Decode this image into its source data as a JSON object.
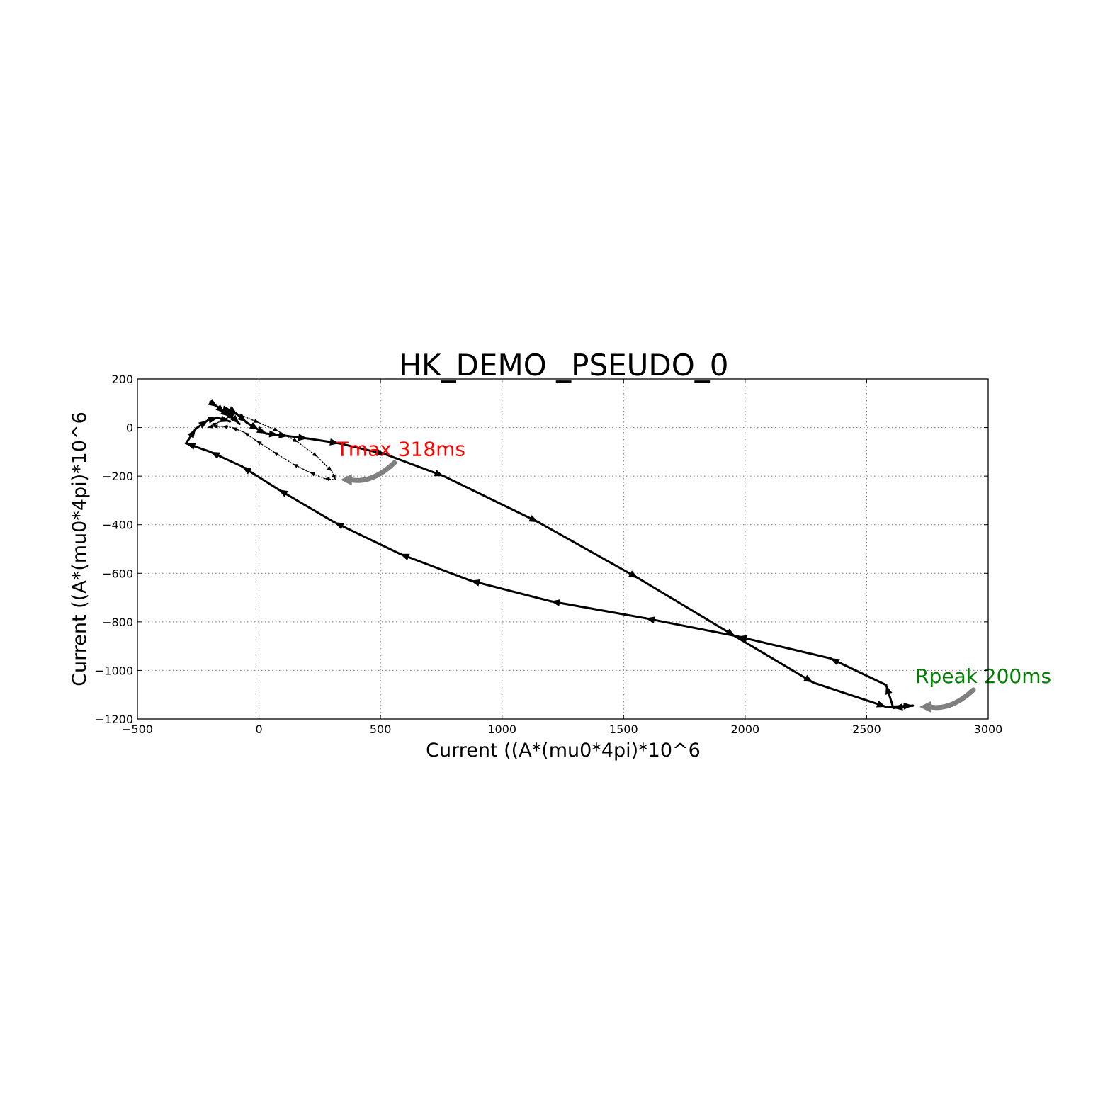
{
  "chart_data": {
    "type": "line",
    "title": "HK_DEMO _PSEUDO_0",
    "xlabel": "Current ((A*(mu0*4pi)*10^6",
    "ylabel": "Current ((A*(mu0*4pi)*10^6",
    "xlim": [
      -500,
      3000
    ],
    "ylim": [
      -1200,
      200
    ],
    "x_ticks": [
      -500,
      0,
      500,
      1000,
      1500,
      2000,
      2500,
      3000
    ],
    "x_tick_labels": [
      "−500",
      "0",
      "500",
      "1000",
      "1500",
      "2000",
      "2500",
      "3000"
    ],
    "y_ticks": [
      200,
      0,
      -200,
      -400,
      -600,
      -800,
      -1000,
      -1200
    ],
    "y_tick_labels": [
      "200",
      "0",
      "−200",
      "−400",
      "−600",
      "−800",
      "−1000",
      "−1200"
    ],
    "grid": true,
    "series": [
      {
        "style": "solid",
        "color": "#000000",
        "x": [
          -200,
          -170,
          -140,
          -120,
          -110,
          -100,
          -80,
          -140,
          -110,
          -90,
          -50,
          0,
          30,
          80,
          120,
          200,
          330,
          520,
          760,
          1150,
          1560,
          1960,
          2280,
          2580,
          2690,
          2610,
          2580,
          2350,
          1970,
          1590,
          1200,
          870,
          580,
          310,
          80,
          -70,
          -200,
          -300,
          -260,
          -210,
          -170,
          -120
        ],
        "y": [
          105,
          85,
          60,
          45,
          40,
          35,
          15,
          75,
          70,
          55,
          20,
          -10,
          -25,
          -30,
          -35,
          -45,
          -65,
          -110,
          -200,
          -390,
          -620,
          -860,
          -1050,
          -1150,
          -1145,
          -1155,
          -1060,
          -950,
          -860,
          -785,
          -715,
          -630,
          -520,
          -390,
          -255,
          -160,
          -100,
          -65,
          -5,
          30,
          40,
          25
        ]
      },
      {
        "style": "dotted",
        "color": "#000000",
        "x": [
          -210,
          -170,
          -130,
          -100,
          -60,
          0,
          80,
          160,
          240,
          300,
          315,
          270,
          210,
          140,
          60,
          -10,
          -60,
          -110,
          -150,
          -190,
          -210
        ],
        "y": [
          0,
          20,
          40,
          55,
          45,
          20,
          -15,
          -60,
          -120,
          -180,
          -215,
          -210,
          -185,
          -150,
          -100,
          -55,
          -20,
          0,
          5,
          5,
          0
        ]
      }
    ],
    "annotations": [
      {
        "text": "Tmax 318ms",
        "color": "#ff0000",
        "x": 318,
        "y": -215
      },
      {
        "text": "Rpeak 200ms",
        "color": "#008000",
        "x": 2700,
        "y": -1150
      }
    ],
    "arrow_color": "#808080"
  }
}
